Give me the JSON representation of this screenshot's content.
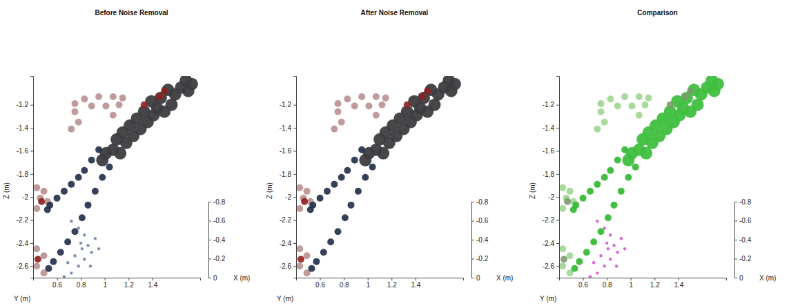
{
  "chart_data": [
    {
      "type": "scatter",
      "title": "Before Noise Removal",
      "xlabel": "Y (m)",
      "ylabel": "Z (m)",
      "zlabel": "X (m)",
      "xlim": [
        0.4,
        1.8
      ],
      "xticks": [
        0.6,
        0.8,
        1,
        1.2,
        1.4
      ],
      "ylim": [
        -2.7,
        -0.95
      ],
      "yticks": [
        -1.2,
        -1.4,
        -1.6,
        -1.8,
        -2,
        -2.2,
        -2.4,
        -2.6
      ],
      "zlim": [
        0,
        -0.8
      ],
      "zticks": [
        -0.8,
        -0.6,
        -0.4,
        -0.2,
        0
      ],
      "grid": false,
      "series": [
        {
          "color": "#b99090",
          "marker": "circle",
          "x": [
            0.75,
            0.83,
            0.95,
            1.07,
            1.15,
            0.75,
            0.78,
            0.72,
            0.89,
            1.01,
            1.12,
            1.07,
            0.43,
            0.49,
            0.46,
            0.52,
            0.43,
            0.43,
            0.49,
            0.43,
            0.49
          ],
          "values": [
            -1.19,
            -1.15,
            -1.13,
            -1.13,
            -1.14,
            -1.26,
            -1.35,
            -1.41,
            -1.21,
            -1.21,
            -1.2,
            -1.29,
            -1.92,
            -1.95,
            -2.01,
            -2.04,
            -2.1,
            -2.45,
            -2.51,
            -2.6,
            -2.66
          ]
        },
        {
          "color": "#3d3d40",
          "marker": "blob",
          "x": [
            1.73,
            1.68,
            1.64,
            1.7,
            1.59,
            1.53,
            1.47,
            1.56,
            1.44,
            1.39,
            1.33,
            1.27,
            1.36,
            1.21,
            1.15,
            1.24,
            1.1,
            1.18,
            1.07,
            1.01,
            1.13,
            0.98,
            1.3,
            1.41,
            1.5
          ],
          "values": [
            -1.02,
            -0.99,
            -1.05,
            -1.08,
            -1.11,
            -1.07,
            -1.14,
            -1.2,
            -1.23,
            -1.17,
            -1.26,
            -1.32,
            -1.35,
            -1.38,
            -1.44,
            -1.47,
            -1.5,
            -1.53,
            -1.59,
            -1.62,
            -1.62,
            -1.68,
            -1.41,
            -1.29,
            -1.26
          ]
        },
        {
          "color": "#1f2c48",
          "marker": "circle",
          "x": [
            0.95,
            0.89,
            0.83,
            0.78,
            0.72,
            0.66,
            0.6,
            0.54,
            0.52,
            1.04,
            0.98,
            0.92,
            0.86,
            0.81,
            0.75,
            0.69,
            0.63,
            0.57,
            0.53
          ],
          "values": [
            -1.59,
            -1.68,
            -1.77,
            -1.83,
            -1.89,
            -1.95,
            -2.01,
            -2.07,
            -2.11,
            -1.74,
            -1.83,
            -1.95,
            -2.07,
            -2.18,
            -2.3,
            -2.39,
            -2.48,
            -2.56,
            -2.62
          ]
        },
        {
          "color": "#6f82a8",
          "marker": "dot",
          "x": [
            0.72,
            0.78,
            0.83,
            0.86,
            0.81,
            0.75,
            0.83,
            0.78,
            0.72,
            0.66,
            0.89,
            0.69,
            0.92,
            0.95,
            0.88,
            0.8
          ],
          "values": [
            -2.21,
            -2.27,
            -2.33,
            -2.42,
            -2.45,
            -2.51,
            -2.54,
            -2.6,
            -2.66,
            -2.69,
            -2.48,
            -2.57,
            -2.36,
            -2.45,
            -2.6,
            -2.4
          ]
        },
        {
          "color": "#8e1f1f",
          "marker": "circle",
          "x": [
            1.5,
            1.46,
            1.33,
            0.47,
            0.44
          ],
          "values": [
            -1.08,
            -1.13,
            -1.2,
            -2.04,
            -2.54
          ]
        }
      ]
    },
    {
      "type": "scatter",
      "title": "After Noise Removal",
      "xlabel": "Y (m)",
      "ylabel": "Z (m)",
      "zlabel": "X (m)",
      "xlim": [
        0.4,
        1.8
      ],
      "xticks": [
        0.6,
        0.8,
        1,
        1.2,
        1.4
      ],
      "ylim": [
        -2.7,
        -0.95
      ],
      "yticks": [
        -1.2,
        -1.4,
        -1.6,
        -1.8,
        -2,
        -2.2,
        -2.4,
        -2.6
      ],
      "zlim": [
        0,
        -0.8
      ],
      "zticks": [
        -0.8,
        -0.6,
        -0.4,
        -0.2,
        0
      ],
      "grid": false,
      "series": [
        {
          "color": "#b99090",
          "marker": "circle",
          "x": [
            0.75,
            0.83,
            0.95,
            1.07,
            1.15,
            0.75,
            0.78,
            0.72,
            0.89,
            1.01,
            1.12,
            1.07,
            0.43,
            0.49,
            0.46,
            0.52,
            0.43,
            0.43,
            0.49,
            0.43,
            0.49
          ],
          "values": [
            -1.19,
            -1.15,
            -1.13,
            -1.13,
            -1.14,
            -1.26,
            -1.35,
            -1.41,
            -1.21,
            -1.21,
            -1.2,
            -1.29,
            -1.92,
            -1.95,
            -2.01,
            -2.04,
            -2.1,
            -2.45,
            -2.51,
            -2.6,
            -2.66
          ]
        },
        {
          "color": "#3d3d40",
          "marker": "blob",
          "x": [
            1.73,
            1.68,
            1.64,
            1.7,
            1.59,
            1.53,
            1.47,
            1.56,
            1.44,
            1.39,
            1.33,
            1.27,
            1.36,
            1.21,
            1.15,
            1.24,
            1.1,
            1.18,
            1.07,
            1.01,
            1.13,
            0.98,
            1.3,
            1.41,
            1.5
          ],
          "values": [
            -1.02,
            -0.99,
            -1.05,
            -1.08,
            -1.11,
            -1.07,
            -1.14,
            -1.2,
            -1.23,
            -1.17,
            -1.26,
            -1.32,
            -1.35,
            -1.38,
            -1.44,
            -1.47,
            -1.5,
            -1.53,
            -1.59,
            -1.62,
            -1.62,
            -1.68,
            -1.41,
            -1.29,
            -1.26
          ]
        },
        {
          "color": "#1f2c48",
          "marker": "circle",
          "x": [
            0.95,
            0.89,
            0.83,
            0.78,
            0.72,
            0.66,
            0.6,
            0.54,
            0.52,
            1.04,
            0.98,
            0.92,
            0.86,
            0.81,
            0.75,
            0.69,
            0.63,
            0.57,
            0.53
          ],
          "values": [
            -1.59,
            -1.68,
            -1.77,
            -1.83,
            -1.89,
            -1.95,
            -2.01,
            -2.07,
            -2.11,
            -1.74,
            -1.83,
            -1.95,
            -2.07,
            -2.18,
            -2.3,
            -2.39,
            -2.48,
            -2.56,
            -2.62
          ]
        },
        {
          "color": "#8e1f1f",
          "marker": "circle",
          "x": [
            1.5,
            1.46,
            1.33,
            0.47,
            0.44
          ],
          "values": [
            -1.08,
            -1.13,
            -1.2,
            -2.04,
            -2.54
          ]
        }
      ]
    },
    {
      "type": "scatter",
      "title": "Comparison",
      "xlabel": "Y (m)",
      "ylabel": "Z (m)",
      "zlabel": "X (m)",
      "xlim": [
        0.4,
        1.8
      ],
      "xticks": [
        0.6,
        0.8,
        1,
        1.2,
        1.4
      ],
      "ylim": [
        -2.7,
        -0.95
      ],
      "yticks": [
        -1.2,
        -1.4,
        -1.6,
        -1.8,
        -2,
        -2.2,
        -2.4,
        -2.6
      ],
      "zlim": [
        0,
        -0.8
      ],
      "zticks": [
        -0.8,
        -0.6,
        -0.4,
        -0.2,
        0
      ],
      "grid": false,
      "series": [
        {
          "color": "#9ed68f",
          "marker": "circle",
          "x": [
            0.75,
            0.83,
            0.95,
            1.07,
            1.15,
            0.75,
            0.78,
            0.72,
            0.89,
            1.01,
            1.12,
            1.07,
            0.43,
            0.49,
            0.46,
            0.52,
            0.43,
            0.43,
            0.49,
            0.43,
            0.49
          ],
          "values": [
            -1.19,
            -1.15,
            -1.13,
            -1.13,
            -1.14,
            -1.26,
            -1.35,
            -1.41,
            -1.21,
            -1.21,
            -1.2,
            -1.29,
            -1.92,
            -1.95,
            -2.01,
            -2.04,
            -2.1,
            -2.45,
            -2.51,
            -2.6,
            -2.66
          ]
        },
        {
          "color": "#3fbf3f",
          "marker": "blob",
          "x": [
            1.73,
            1.68,
            1.64,
            1.7,
            1.59,
            1.53,
            1.47,
            1.56,
            1.44,
            1.39,
            1.33,
            1.27,
            1.36,
            1.21,
            1.15,
            1.24,
            1.1,
            1.18,
            1.07,
            1.01,
            1.13,
            0.98,
            1.3,
            1.41,
            1.5
          ],
          "values": [
            -1.02,
            -0.99,
            -1.05,
            -1.08,
            -1.11,
            -1.07,
            -1.14,
            -1.2,
            -1.23,
            -1.17,
            -1.26,
            -1.32,
            -1.35,
            -1.38,
            -1.44,
            -1.47,
            -1.5,
            -1.53,
            -1.59,
            -1.62,
            -1.62,
            -1.68,
            -1.41,
            -1.29,
            -1.26
          ]
        },
        {
          "color": "#2db82d",
          "marker": "circle",
          "x": [
            0.95,
            0.89,
            0.83,
            0.78,
            0.72,
            0.66,
            0.6,
            0.54,
            0.52,
            1.04,
            0.98,
            0.92,
            0.86,
            0.81,
            0.75,
            0.69,
            0.63,
            0.57,
            0.53
          ],
          "values": [
            -1.59,
            -1.68,
            -1.77,
            -1.83,
            -1.89,
            -1.95,
            -2.01,
            -2.07,
            -2.11,
            -1.74,
            -1.83,
            -1.95,
            -2.07,
            -2.18,
            -2.3,
            -2.39,
            -2.48,
            -2.56,
            -2.62
          ]
        },
        {
          "color": "#d94fd9",
          "marker": "dot",
          "x": [
            0.72,
            0.78,
            0.83,
            0.86,
            0.81,
            0.75,
            0.83,
            0.78,
            0.72,
            0.66,
            0.89,
            0.69,
            0.92,
            0.95,
            0.88,
            0.8
          ],
          "values": [
            -2.21,
            -2.27,
            -2.33,
            -2.42,
            -2.45,
            -2.51,
            -2.54,
            -2.6,
            -2.66,
            -2.69,
            -2.48,
            -2.57,
            -2.36,
            -2.45,
            -2.6,
            -2.4
          ]
        },
        {
          "color": "#7c9a6e",
          "marker": "circle",
          "x": [
            1.5,
            1.46,
            1.33,
            0.47,
            0.44
          ],
          "values": [
            -1.08,
            -1.13,
            -1.2,
            -2.04,
            -2.54
          ]
        }
      ]
    }
  ]
}
